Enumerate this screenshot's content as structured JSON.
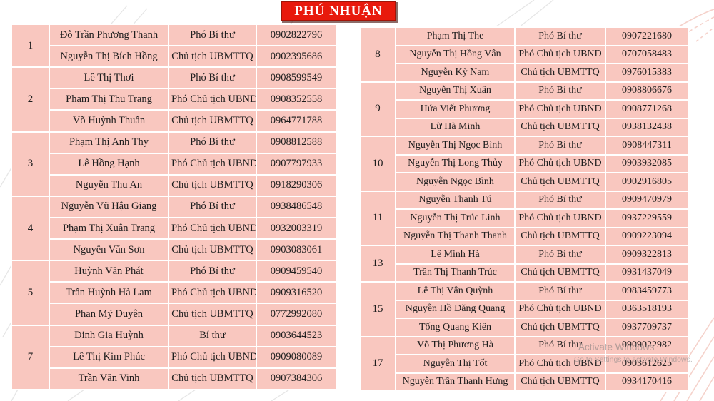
{
  "title": "PHÚ NHUẬN",
  "colors": {
    "cell_bg": "#f9c7bf",
    "grid": "#ffffff",
    "table_text": "#1e1e1e",
    "title_bg": "#e8190c",
    "title_text": "#ffffff"
  },
  "watermark": {
    "line1": "Activate Windows",
    "line2": "Go to Settings to activate Windows."
  },
  "left_table": {
    "groups": [
      {
        "no": "1",
        "members": [
          {
            "name": "Đỗ Trần Phương Thanh",
            "position": "Phó Bí thư",
            "phone": "0902822796"
          },
          {
            "name": "Nguyễn Thị Bích Hồng",
            "position": "Chủ tịch UBMTTQ",
            "phone": "0902395686"
          }
        ]
      },
      {
        "no": "2",
        "members": [
          {
            "name": "Lê Thị Thơi",
            "position": "Phó Bí thư",
            "phone": "0908599549"
          },
          {
            "name": "Phạm Thị Thu Trang",
            "position": "Phó Chủ tịch UBND",
            "phone": "0908352558"
          },
          {
            "name": "Võ Huỳnh Thuần",
            "position": "Chủ tịch UBMTTQ",
            "phone": "0964771788"
          }
        ]
      },
      {
        "no": "3",
        "members": [
          {
            "name": "Phạm Thị Anh Thy",
            "position": "Phó Bí thư",
            "phone": "0908812588"
          },
          {
            "name": "Lê Hồng Hạnh",
            "position": "Phó Chủ tịch UBND",
            "phone": "0907797933"
          },
          {
            "name": "Nguyễn Thu An",
            "position": "Chủ tịch UBMTTQ",
            "phone": "0918290306"
          }
        ]
      },
      {
        "no": "4",
        "members": [
          {
            "name": "Nguyễn Vũ Hậu Giang",
            "position": "Phó Bí thư",
            "phone": "0938486548"
          },
          {
            "name": "Phạm Thị Xuân Trang",
            "position": "Phó Chủ tịch UBND",
            "phone": "0932003319"
          },
          {
            "name": "Nguyễn Văn Sơn",
            "position": "Chủ tịch UBMTTQ",
            "phone": "0903083061"
          }
        ]
      },
      {
        "no": "5",
        "members": [
          {
            "name": "Huỳnh Văn Phát",
            "position": "Phó Bí thư",
            "phone": "0909459540"
          },
          {
            "name": "Trần Huỳnh Hà Lam",
            "position": "Phó Chủ tịch UBND",
            "phone": "0909316520"
          },
          {
            "name": "Phan Mỹ Duyên",
            "position": "Chủ tịch UBMTTQ",
            "phone": "0772992080"
          }
        ]
      },
      {
        "no": "7",
        "members": [
          {
            "name": "Đinh Gia Huỳnh",
            "position": "Bí thư",
            "phone": "0903644523"
          },
          {
            "name": "Lê Thị Kim Phúc",
            "position": "Phó Chủ tịch UBND",
            "phone": "0909080089"
          },
          {
            "name": "Trần Văn Vinh",
            "position": "Chủ tịch UBMTTQ",
            "phone": "0907384306"
          }
        ]
      }
    ]
  },
  "right_table": {
    "groups": [
      {
        "no": "8",
        "members": [
          {
            "name": "Phạm Thị The",
            "position": "Phó Bí thư",
            "phone": "0907221680"
          },
          {
            "name": "Nguyễn Thị Hồng Vân",
            "position": "Phó Chủ tịch UBND",
            "phone": "0707058483"
          },
          {
            "name": "Nguyễn Kỳ Nam",
            "position": "Chủ tịch UBMTTQ",
            "phone": "0976015383"
          }
        ]
      },
      {
        "no": "9",
        "members": [
          {
            "name": "Nguyễn Thị Xuân",
            "position": "Phó Bí thư",
            "phone": "0908806676"
          },
          {
            "name": "Hứa Viết Phương",
            "position": "Phó Chủ tịch UBND",
            "phone": "0908771268"
          },
          {
            "name": "Lữ Hà Minh",
            "position": "Chủ tịch UBMTTQ",
            "phone": "0938132438"
          }
        ]
      },
      {
        "no": "10",
        "members": [
          {
            "name": "Nguyễn Thị Ngọc Bình",
            "position": "Phó Bí thư",
            "phone": "0908447311"
          },
          {
            "name": "Nguyễn Thị Long Thủy",
            "position": "Phó Chủ tịch UBND",
            "phone": "0903932085"
          },
          {
            "name": "Nguyễn Ngọc Bình",
            "position": "Chủ tịch UBMTTQ",
            "phone": "0902916805"
          }
        ]
      },
      {
        "no": "11",
        "members": [
          {
            "name": "Nguyễn Thanh Tú",
            "position": "Phó Bí thư",
            "phone": "0909470979"
          },
          {
            "name": "Nguyễn Thị Trúc Linh",
            "position": "Phó Chủ tịch UBND",
            "phone": "0937229559"
          },
          {
            "name": "Nguyễn Thị Thanh Thanh",
            "position": "Chủ tịch UBMTTQ",
            "phone": "0909223094"
          }
        ]
      },
      {
        "no": "13",
        "members": [
          {
            "name": "Lê Minh Hà",
            "position": "Phó Bí thư",
            "phone": "0909322813"
          },
          {
            "name": "Trần Thị Thanh Trúc",
            "position": "Chủ tịch UBMTTQ",
            "phone": "0931437049"
          }
        ]
      },
      {
        "no": "15",
        "members": [
          {
            "name": "Lê Thị Vân Quỳnh",
            "position": "Phó Bí thư",
            "phone": "0983459773"
          },
          {
            "name": "Nguyễn Hồ Đăng Quang",
            "position": "Phó Chủ tịch UBND",
            "phone": "0363518193"
          },
          {
            "name": "Tống Quang Kiên",
            "position": "Chủ tịch UBMTTQ",
            "phone": "0937709737"
          }
        ]
      },
      {
        "no": "17",
        "members": [
          {
            "name": "Võ Thị Phương Hà",
            "position": "Phó Bí thư",
            "phone": "0909022982"
          },
          {
            "name": "Nguyễn Thị Tốt",
            "position": "Phó Chủ tịch UBND",
            "phone": "0903612625"
          },
          {
            "name": "Nguyễn Trần Thanh Hưng",
            "position": "Chủ tịch UBMTTQ",
            "phone": "0934170416"
          }
        ]
      }
    ]
  }
}
